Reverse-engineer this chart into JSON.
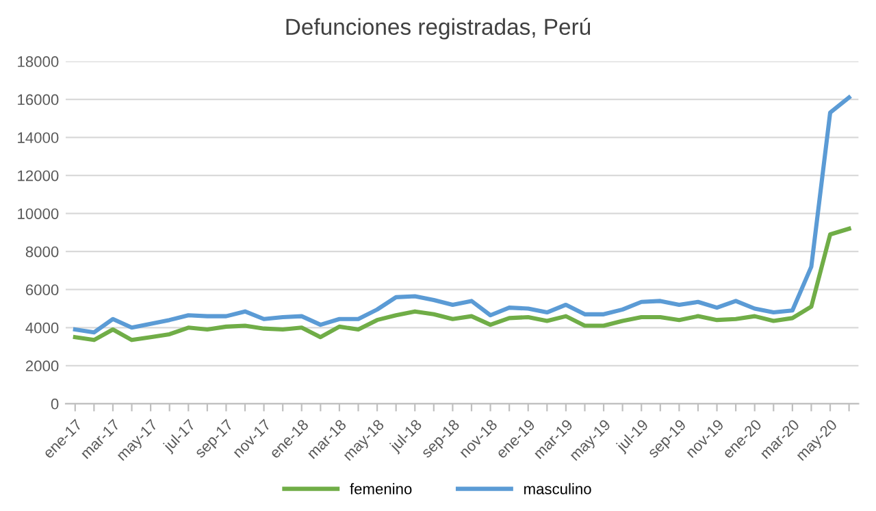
{
  "chart_data": {
    "type": "line",
    "title": "Defunciones registradas, Perú",
    "categories": [
      "ene-17",
      null,
      "mar-17",
      null,
      "may-17",
      null,
      "jul-17",
      null,
      "sep-17",
      null,
      "nov-17",
      null,
      "ene-18",
      null,
      "mar-18",
      null,
      "may-18",
      null,
      "jul-18",
      null,
      "sep-18",
      null,
      "nov-18",
      null,
      "ene-19",
      null,
      "mar-19",
      null,
      "may-19",
      null,
      "jul-19",
      null,
      "sep-19",
      null,
      "nov-19",
      null,
      "ene-20",
      null,
      "mar-20",
      null,
      "may-20",
      null
    ],
    "series": [
      {
        "name": "femenino",
        "color": "#70ad47",
        "values": [
          3500,
          3350,
          3900,
          3350,
          3500,
          3650,
          4000,
          3900,
          4050,
          4100,
          3950,
          3900,
          4000,
          3500,
          4050,
          3900,
          4400,
          4650,
          4850,
          4700,
          4450,
          4600,
          4150,
          4500,
          4550,
          4350,
          4600,
          4100,
          4100,
          4350,
          4550,
          4550,
          4400,
          4600,
          4400,
          4450,
          4600,
          4350,
          4500,
          5100,
          8900,
          9200
        ]
      },
      {
        "name": "masculino",
        "color": "#5b9bd5",
        "values": [
          3900,
          3750,
          4450,
          4000,
          4200,
          4400,
          4650,
          4600,
          4600,
          4850,
          4450,
          4550,
          4600,
          4150,
          4450,
          4450,
          4950,
          5600,
          5650,
          5450,
          5200,
          5400,
          4650,
          5050,
          5000,
          4800,
          5200,
          4700,
          4700,
          4950,
          5350,
          5400,
          5200,
          5350,
          5050,
          5400,
          5000,
          4800,
          4900,
          7200,
          15300,
          16100
        ]
      }
    ],
    "ylim": [
      0,
      18000
    ],
    "yticks": [
      0,
      2000,
      4000,
      6000,
      8000,
      10000,
      12000,
      14000,
      16000,
      18000
    ],
    "grid": "y",
    "legend": "bottom",
    "marker": "none",
    "line_style": "solid"
  }
}
